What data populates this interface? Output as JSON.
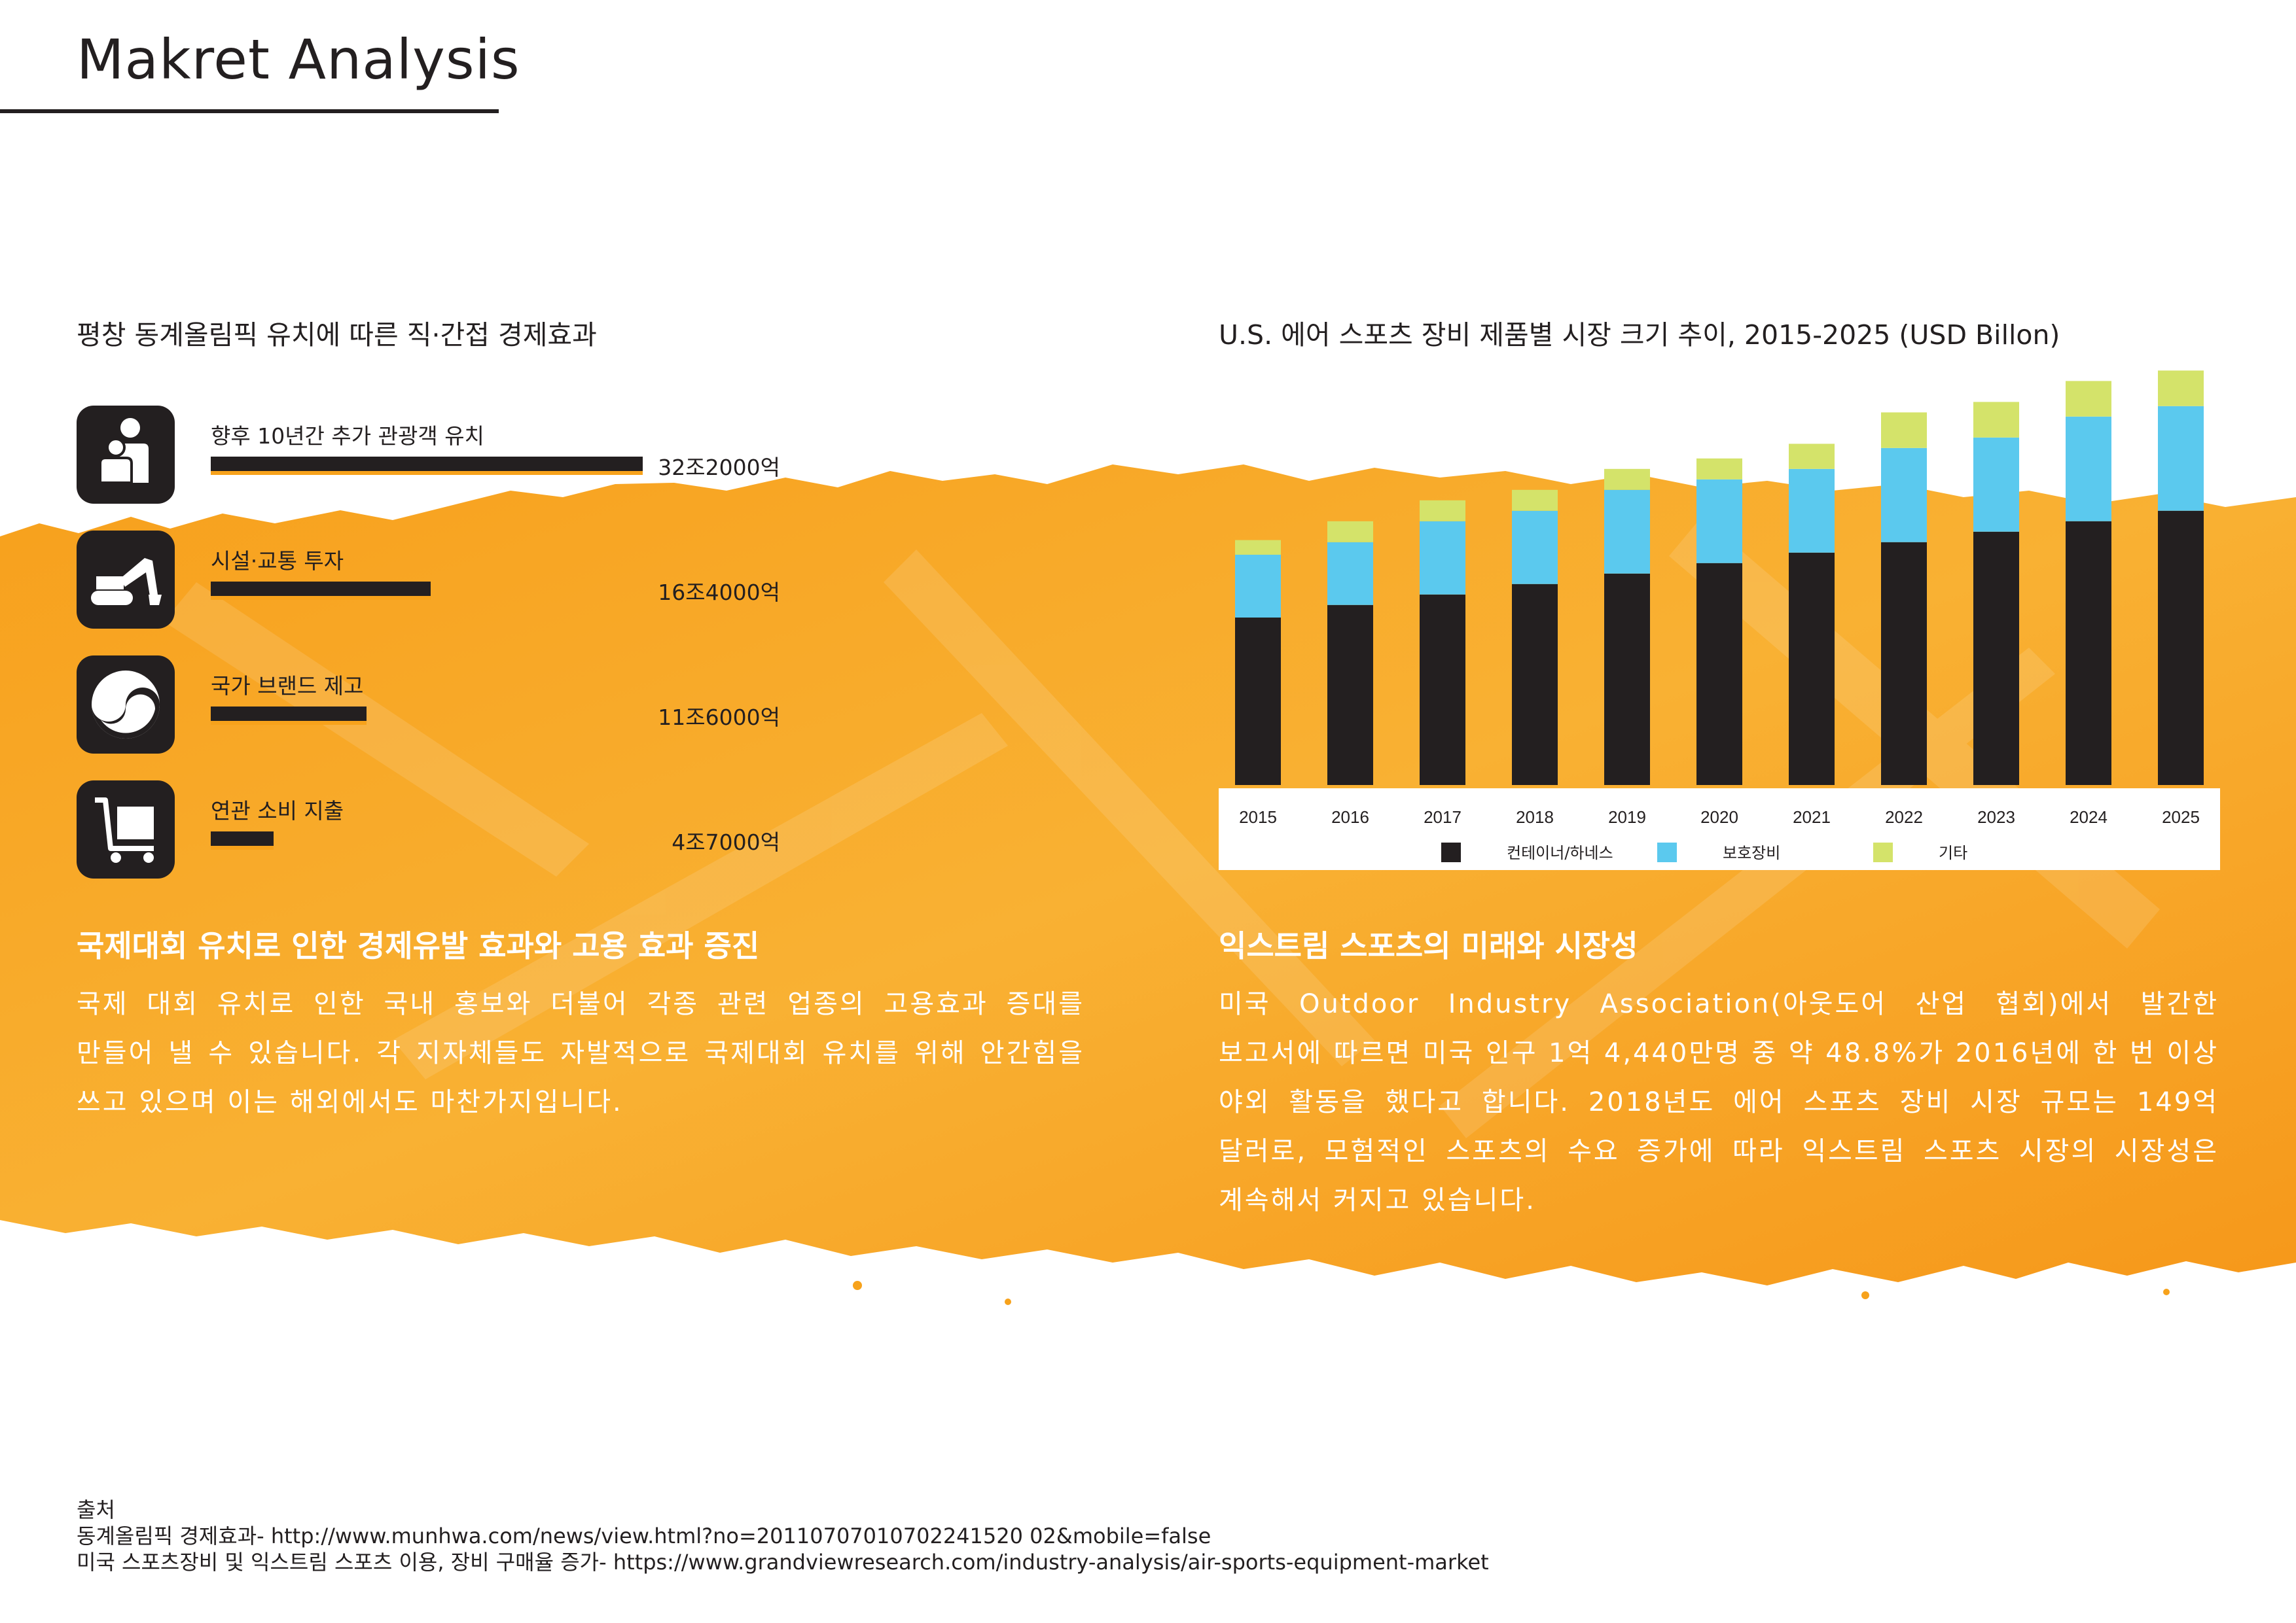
{
  "header": {
    "title": "Makret Analysis"
  },
  "left": {
    "heading": "평창 동계올림픽 유치에 따른 직·간접 경제효과",
    "items": [
      {
        "icon": "people-icon",
        "label": "향후 10년간 추가 관광객 유치",
        "value": "32조2000억",
        "amount": 32.2
      },
      {
        "icon": "excavator-icon",
        "label": "시설·교통 투자",
        "value": "16조4000억",
        "amount": 16.4
      },
      {
        "icon": "taegeuk-icon",
        "label": "국가 브랜드 제고",
        "value": "11조6000억",
        "amount": 11.6
      },
      {
        "icon": "shopping-cart-icon",
        "label": "연관 소비 지출",
        "value": "4조7000억",
        "amount": 4.7
      }
    ],
    "subheading": "국제대회 유치로 인한 경제유발 효과와 고용 효과 증진",
    "body": "국제 대회 유치로 인한 국내 홍보와 더불어 각종 관련 업종의 고용효과 증대를 만들어 낼 수 있습니다. 각 지자체들도 자발적으로 국제대회 유치를 위해 안간힘을 쓰고 있으며 이는 해외에서도 마찬가지입니다."
  },
  "right": {
    "heading": "U.S. 에어 스포츠 장비 제품별 시장 크기 추이, 2015-2025 (USD Billon)",
    "subheading": "익스트림 스포츠의 미래와 시장성",
    "body": "미국 Outdoor Industry Association(아웃도어 산업 협회)에서 발간한 보고서에 따르면 미국 인구 1억 4,440만명 중 약 48.8%가 2016년에 한 번 이상 야외 활동을 했다고 합니다. 2018년도 에어 스포츠 장비 시장 규모는 149억 달러로, 모험적인 스포츠의 수요 증가에 따라 익스트림 스포츠 시장의 시장성은 계속해서 커지고 있습니다."
  },
  "chart_data": {
    "type": "bar",
    "stacked": true,
    "title": "U.S. 에어 스포츠 장비 제품별 시장 크기 추이, 2015-2025 (USD Billon)",
    "categories": [
      "2015",
      "2016",
      "2017",
      "2018",
      "2019",
      "2020",
      "2021",
      "2022",
      "2023",
      "2024",
      "2025"
    ],
    "series": [
      {
        "name": "컨테이너/하네스",
        "color": "#231f20",
        "values": [
          8.0,
          8.6,
          9.1,
          9.6,
          10.1,
          10.6,
          11.1,
          11.6,
          12.1,
          12.6,
          13.1
        ]
      },
      {
        "name": "보호장비",
        "color": "#5bc9ee",
        "values": [
          3.0,
          3.0,
          3.5,
          3.5,
          4.0,
          4.0,
          4.0,
          4.5,
          4.5,
          5.0,
          5.0
        ]
      },
      {
        "name": "기타",
        "color": "#d4e36a",
        "values": [
          0.7,
          1.0,
          1.0,
          1.0,
          1.0,
          1.0,
          1.2,
          1.7,
          1.7,
          1.7,
          1.7
        ]
      }
    ],
    "xlabel": "",
    "ylabel": "",
    "ylim": [
      0,
      20
    ],
    "grid": false,
    "legend": "bottom"
  },
  "sources": {
    "heading": "출처",
    "lines": [
      "동계올림픽 경제효과- http://www.munhwa.com/news/view.html?no=20110707010702241520 02&mobile=false",
      "미국 스포츠장비 및 익스트림 스포츠 이용, 장비 구매율 증가- https://www.grandviewresearch.com/industry-analysis/air-sports-equipment-market"
    ]
  },
  "colors": {
    "accent": "#f7a21b",
    "dark": "#231f20",
    "blue": "#5bc9ee",
    "lime": "#d4e36a"
  }
}
